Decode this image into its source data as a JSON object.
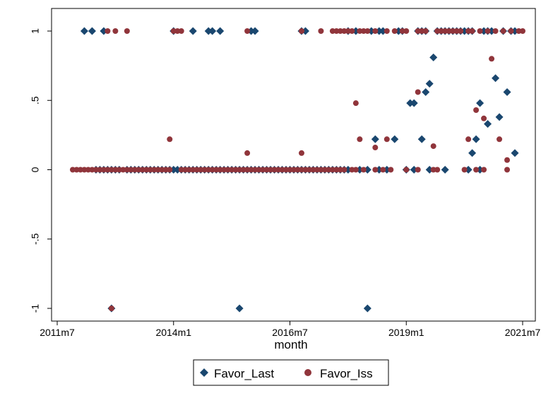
{
  "chart_data": {
    "type": "scatter",
    "xlabel": "month",
    "ylabel": "",
    "xlim": [
      "2011-01",
      "2021-10"
    ],
    "ylim": [
      -1.05,
      1.05
    ],
    "x_ticks": [
      {
        "value": "2011-07",
        "label": "2011m7"
      },
      {
        "value": "2014-01",
        "label": "2014m1"
      },
      {
        "value": "2016-07",
        "label": "2016m7"
      },
      {
        "value": "2019-01",
        "label": "2019m1"
      },
      {
        "value": "2021-07",
        "label": "2021m7"
      }
    ],
    "y_ticks": [
      {
        "value": -1,
        "label": "-1"
      },
      {
        "value": -0.5,
        "label": "-.5"
      },
      {
        "value": 0,
        "label": "0"
      },
      {
        "value": 0.5,
        "label": ".5"
      },
      {
        "value": 1,
        "label": "1"
      }
    ],
    "grid": false,
    "legend_position": "bottom",
    "series": [
      {
        "name": "Favor_Last",
        "marker": "diamond",
        "color": "#1a476f",
        "points": [
          [
            "2012-02",
            1
          ],
          [
            "2012-04",
            1
          ],
          [
            "2012-07",
            1
          ],
          [
            "2014-01",
            1
          ],
          [
            "2014-06",
            1
          ],
          [
            "2014-10",
            1
          ],
          [
            "2014-11",
            1
          ],
          [
            "2015-01",
            1
          ],
          [
            "2015-09",
            1
          ],
          [
            "2015-10",
            1
          ],
          [
            "2016-10",
            1
          ],
          [
            "2016-11",
            1
          ],
          [
            "2017-10",
            1
          ],
          [
            "2017-12",
            1
          ],
          [
            "2018-04",
            1
          ],
          [
            "2018-06",
            1
          ],
          [
            "2018-07",
            1
          ],
          [
            "2018-11",
            1
          ],
          [
            "2018-12",
            1
          ],
          [
            "2019-04",
            1
          ],
          [
            "2019-05",
            1
          ],
          [
            "2019-06",
            1
          ],
          [
            "2019-09",
            1
          ],
          [
            "2019-10",
            1
          ],
          [
            "2019-11",
            1
          ],
          [
            "2019-12",
            1
          ],
          [
            "2020-01",
            1
          ],
          [
            "2020-02",
            1
          ],
          [
            "2020-03",
            1
          ],
          [
            "2020-04",
            1
          ],
          [
            "2020-05",
            1
          ],
          [
            "2020-06",
            1
          ],
          [
            "2020-09",
            1
          ],
          [
            "2020-10",
            1
          ],
          [
            "2020-11",
            1
          ],
          [
            "2021-02",
            1
          ],
          [
            "2021-04",
            1
          ],
          [
            "2021-05",
            1
          ],
          [
            "2019-02",
            0.48
          ],
          [
            "2019-03",
            0.48
          ],
          [
            "2019-06",
            0.56
          ],
          [
            "2019-07",
            0.62
          ],
          [
            "2019-08",
            0.81
          ],
          [
            "2019-05",
            0.22
          ],
          [
            "2018-05",
            0.22
          ],
          [
            "2018-10",
            0.22
          ],
          [
            "2020-06",
            0.12
          ],
          [
            "2020-07",
            0.22
          ],
          [
            "2020-08",
            0.48
          ],
          [
            "2020-10",
            0.33
          ],
          [
            "2020-12",
            0.66
          ],
          [
            "2021-01",
            0.38
          ],
          [
            "2021-03",
            0.56
          ],
          [
            "2021-05",
            0.12
          ],
          [
            "2012-05",
            0
          ],
          [
            "2012-06",
            0
          ],
          [
            "2012-07",
            0
          ],
          [
            "2012-08",
            0
          ],
          [
            "2012-09",
            0
          ],
          [
            "2012-10",
            0
          ],
          [
            "2012-11",
            0
          ],
          [
            "2013-01",
            0
          ],
          [
            "2013-02",
            0
          ],
          [
            "2013-03",
            0
          ],
          [
            "2013-04",
            0
          ],
          [
            "2013-05",
            0
          ],
          [
            "2013-06",
            0
          ],
          [
            "2013-07",
            0
          ],
          [
            "2013-08",
            0
          ],
          [
            "2013-09",
            0
          ],
          [
            "2013-10",
            0
          ],
          [
            "2013-11",
            0
          ],
          [
            "2013-12",
            0
          ],
          [
            "2014-01",
            0
          ],
          [
            "2014-02",
            0
          ],
          [
            "2014-03",
            0
          ],
          [
            "2014-04",
            0
          ],
          [
            "2014-05",
            0
          ],
          [
            "2014-06",
            0
          ],
          [
            "2014-07",
            0
          ],
          [
            "2014-08",
            0
          ],
          [
            "2014-09",
            0
          ],
          [
            "2014-10",
            0
          ],
          [
            "2014-11",
            0
          ],
          [
            "2014-12",
            0
          ],
          [
            "2015-01",
            0
          ],
          [
            "2015-02",
            0
          ],
          [
            "2015-03",
            0
          ],
          [
            "2015-04",
            0
          ],
          [
            "2015-05",
            0
          ],
          [
            "2015-06",
            0
          ],
          [
            "2015-07",
            0
          ],
          [
            "2015-08",
            0
          ],
          [
            "2015-09",
            0
          ],
          [
            "2015-10",
            0
          ],
          [
            "2015-11",
            0
          ],
          [
            "2015-12",
            0
          ],
          [
            "2016-01",
            0
          ],
          [
            "2016-02",
            0
          ],
          [
            "2016-03",
            0
          ],
          [
            "2016-04",
            0
          ],
          [
            "2016-05",
            0
          ],
          [
            "2016-06",
            0
          ],
          [
            "2016-07",
            0
          ],
          [
            "2016-08",
            0
          ],
          [
            "2016-09",
            0
          ],
          [
            "2016-10",
            0
          ],
          [
            "2016-11",
            0
          ],
          [
            "2016-12",
            0
          ],
          [
            "2017-01",
            0
          ],
          [
            "2017-02",
            0
          ],
          [
            "2017-03",
            0
          ],
          [
            "2017-04",
            0
          ],
          [
            "2017-05",
            0
          ],
          [
            "2017-06",
            0
          ],
          [
            "2017-07",
            0
          ],
          [
            "2017-08",
            0
          ],
          [
            "2017-09",
            0
          ],
          [
            "2017-10",
            0
          ],
          [
            "2018-01",
            0
          ],
          [
            "2018-03",
            0
          ],
          [
            "2018-06",
            0
          ],
          [
            "2018-08",
            0
          ],
          [
            "2019-01",
            0
          ],
          [
            "2019-03",
            0
          ],
          [
            "2019-07",
            0
          ],
          [
            "2019-11",
            0
          ],
          [
            "2020-05",
            0
          ],
          [
            "2020-08",
            0
          ],
          [
            "2012-09",
            -1
          ],
          [
            "2015-06",
            -1
          ],
          [
            "2018-03",
            -1
          ]
        ]
      },
      {
        "name": "Favor_Iss",
        "marker": "circle",
        "color": "#90353b",
        "points": [
          [
            "2012-08",
            1
          ],
          [
            "2012-10",
            1
          ],
          [
            "2013-01",
            1
          ],
          [
            "2014-01",
            1
          ],
          [
            "2014-02",
            1
          ],
          [
            "2014-03",
            1
          ],
          [
            "2015-08",
            1
          ],
          [
            "2016-10",
            1
          ],
          [
            "2017-03",
            1
          ],
          [
            "2017-06",
            1
          ],
          [
            "2017-07",
            1
          ],
          [
            "2017-08",
            1
          ],
          [
            "2017-09",
            1
          ],
          [
            "2017-10",
            1
          ],
          [
            "2017-11",
            1
          ],
          [
            "2018-01",
            1
          ],
          [
            "2018-02",
            1
          ],
          [
            "2018-03",
            1
          ],
          [
            "2018-05",
            1
          ],
          [
            "2018-08",
            1
          ],
          [
            "2018-10",
            1
          ],
          [
            "2018-12",
            1
          ],
          [
            "2019-01",
            1
          ],
          [
            "2019-04",
            1
          ],
          [
            "2019-05",
            1
          ],
          [
            "2019-06",
            1
          ],
          [
            "2019-09",
            1
          ],
          [
            "2019-10",
            1
          ],
          [
            "2019-11",
            1
          ],
          [
            "2019-12",
            1
          ],
          [
            "2020-01",
            1
          ],
          [
            "2020-02",
            1
          ],
          [
            "2020-03",
            1
          ],
          [
            "2020-05",
            1
          ],
          [
            "2020-06",
            1
          ],
          [
            "2020-08",
            1
          ],
          [
            "2020-10",
            1
          ],
          [
            "2020-12",
            1
          ],
          [
            "2021-02",
            1
          ],
          [
            "2021-04",
            1
          ],
          [
            "2021-06",
            1
          ],
          [
            "2021-07",
            1
          ],
          [
            "2013-12",
            0.22
          ],
          [
            "2015-08",
            0.12
          ],
          [
            "2016-10",
            0.12
          ],
          [
            "2017-12",
            0.48
          ],
          [
            "2018-01",
            0.22
          ],
          [
            "2018-05",
            0.16
          ],
          [
            "2018-08",
            0.22
          ],
          [
            "2019-04",
            0.56
          ],
          [
            "2019-08",
            0.17
          ],
          [
            "2020-05",
            0.22
          ],
          [
            "2020-07",
            0.43
          ],
          [
            "2020-09",
            0.37
          ],
          [
            "2020-11",
            0.8
          ],
          [
            "2021-01",
            0.22
          ],
          [
            "2021-03",
            0.07
          ],
          [
            "2011-11",
            0
          ],
          [
            "2011-12",
            0
          ],
          [
            "2012-01",
            0
          ],
          [
            "2012-02",
            0
          ],
          [
            "2012-03",
            0
          ],
          [
            "2012-04",
            0
          ],
          [
            "2012-05",
            0
          ],
          [
            "2012-06",
            0
          ],
          [
            "2012-07",
            0
          ],
          [
            "2012-08",
            0
          ],
          [
            "2012-09",
            0
          ],
          [
            "2012-10",
            0
          ],
          [
            "2012-11",
            0
          ],
          [
            "2012-12",
            0
          ],
          [
            "2013-01",
            0
          ],
          [
            "2013-02",
            0
          ],
          [
            "2013-03",
            0
          ],
          [
            "2013-04",
            0
          ],
          [
            "2013-05",
            0
          ],
          [
            "2013-06",
            0
          ],
          [
            "2013-07",
            0
          ],
          [
            "2013-08",
            0
          ],
          [
            "2013-09",
            0
          ],
          [
            "2013-10",
            0
          ],
          [
            "2013-11",
            0
          ],
          [
            "2013-12",
            0
          ],
          [
            "2014-03",
            0
          ],
          [
            "2014-04",
            0
          ],
          [
            "2014-05",
            0
          ],
          [
            "2014-06",
            0
          ],
          [
            "2014-07",
            0
          ],
          [
            "2014-08",
            0
          ],
          [
            "2014-09",
            0
          ],
          [
            "2014-10",
            0
          ],
          [
            "2014-11",
            0
          ],
          [
            "2014-12",
            0
          ],
          [
            "2015-01",
            0
          ],
          [
            "2015-02",
            0
          ],
          [
            "2015-03",
            0
          ],
          [
            "2015-04",
            0
          ],
          [
            "2015-05",
            0
          ],
          [
            "2015-06",
            0
          ],
          [
            "2015-07",
            0
          ],
          [
            "2015-08",
            0
          ],
          [
            "2015-09",
            0
          ],
          [
            "2015-10",
            0
          ],
          [
            "2015-11",
            0
          ],
          [
            "2015-12",
            0
          ],
          [
            "2016-01",
            0
          ],
          [
            "2016-02",
            0
          ],
          [
            "2016-03",
            0
          ],
          [
            "2016-04",
            0
          ],
          [
            "2016-05",
            0
          ],
          [
            "2016-06",
            0
          ],
          [
            "2016-07",
            0
          ],
          [
            "2016-08",
            0
          ],
          [
            "2016-09",
            0
          ],
          [
            "2016-10",
            0
          ],
          [
            "2016-11",
            0
          ],
          [
            "2016-12",
            0
          ],
          [
            "2017-01",
            0
          ],
          [
            "2017-02",
            0
          ],
          [
            "2017-03",
            0
          ],
          [
            "2017-04",
            0
          ],
          [
            "2017-05",
            0
          ],
          [
            "2017-06",
            0
          ],
          [
            "2017-07",
            0
          ],
          [
            "2017-08",
            0
          ],
          [
            "2017-09",
            0
          ],
          [
            "2017-11",
            0
          ],
          [
            "2017-12",
            0
          ],
          [
            "2018-02",
            0
          ],
          [
            "2018-05",
            0
          ],
          [
            "2018-07",
            0
          ],
          [
            "2018-09",
            0
          ],
          [
            "2019-01",
            0
          ],
          [
            "2019-04",
            0
          ],
          [
            "2019-08",
            0
          ],
          [
            "2019-09",
            0
          ],
          [
            "2020-04",
            0
          ],
          [
            "2020-07",
            0
          ],
          [
            "2020-09",
            0
          ],
          [
            "2021-03",
            0
          ],
          [
            "2012-09",
            -1
          ]
        ]
      }
    ]
  }
}
